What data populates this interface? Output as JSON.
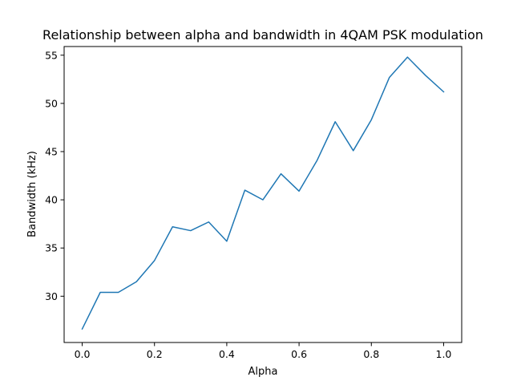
{
  "chart_data": {
    "type": "line",
    "title": "Relationship between alpha and bandwidth in 4QAM PSK modulation",
    "xlabel": "Alpha",
    "ylabel": "Bandwidth (kHz)",
    "xlim": [
      -0.05,
      1.05
    ],
    "ylim": [
      25.2,
      55.9
    ],
    "xticks": [
      0.0,
      0.2,
      0.4,
      0.6,
      0.8,
      1.0
    ],
    "xtick_labels": [
      "0.0",
      "0.2",
      "0.4",
      "0.6",
      "0.8",
      "1.0"
    ],
    "yticks": [
      30,
      35,
      40,
      45,
      50,
      55
    ],
    "ytick_labels": [
      "30",
      "35",
      "40",
      "45",
      "50",
      "55"
    ],
    "grid": false,
    "series": [
      {
        "color": "#1f77b4",
        "x": [
          0.0,
          0.05,
          0.1,
          0.15,
          0.2,
          0.25,
          0.3,
          0.35,
          0.4,
          0.45,
          0.5,
          0.55,
          0.6,
          0.65,
          0.7,
          0.75,
          0.8,
          0.85,
          0.9,
          0.95,
          1.0
        ],
        "y": [
          26.6,
          30.4,
          30.4,
          31.5,
          33.7,
          37.2,
          36.8,
          37.7,
          35.7,
          41.0,
          40.0,
          42.7,
          40.9,
          44.1,
          48.1,
          45.1,
          48.3,
          52.7,
          54.8,
          52.9,
          51.2
        ]
      }
    ]
  }
}
